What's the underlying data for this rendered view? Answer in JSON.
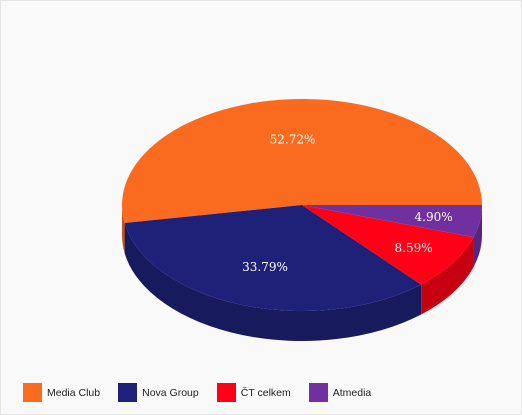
{
  "chart_data": {
    "type": "pie",
    "style": "3d",
    "categories": [
      "Media Club",
      "Nova Group",
      "ČT celkem",
      "Atmedia"
    ],
    "values": [
      52.72,
      33.79,
      8.59,
      4.9
    ],
    "labels": [
      "52.72%",
      "33.79%",
      "8.59%",
      "4.90%"
    ],
    "colors": [
      "#fa6b1f",
      "#1f2179",
      "#ff0016",
      "#7030a0"
    ],
    "legend_position": "bottom-left"
  }
}
